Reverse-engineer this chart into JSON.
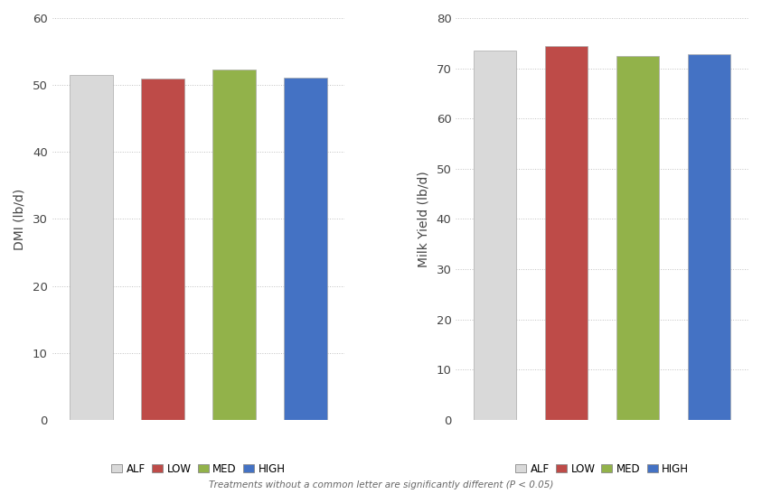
{
  "dmi": {
    "values": [
      51.5,
      51.0,
      52.3,
      51.1
    ],
    "ylabel": "DMI (lb/d)",
    "ylim": [
      0,
      60
    ],
    "yticks": [
      0,
      10,
      20,
      30,
      40,
      50,
      60
    ]
  },
  "milk": {
    "values": [
      73.5,
      74.5,
      72.5,
      72.8
    ],
    "ylabel": "Milk Yield (lb/d)",
    "ylim": [
      0,
      80
    ],
    "yticks": [
      0,
      10,
      20,
      30,
      40,
      50,
      60,
      70,
      80
    ]
  },
  "categories": [
    "ALF",
    "LOW",
    "MED",
    "HIGH"
  ],
  "bar_colors": [
    "#d9d9d9",
    "#be4b48",
    "#92b24a",
    "#4472c4"
  ],
  "legend_labels": [
    "ALF",
    "LOW",
    "MED",
    "HIGH"
  ],
  "footnote": "Treatments without a common letter are significantly different (P < 0.05)",
  "background_color": "#ffffff",
  "bar_width": 0.6
}
